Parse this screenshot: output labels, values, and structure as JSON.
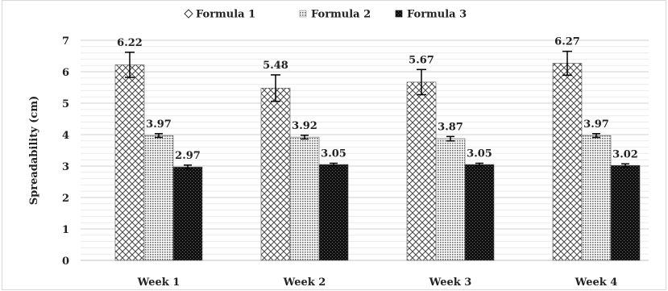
{
  "chart_data": {
    "type": "bar",
    "title": "",
    "xlabel": "",
    "ylabel": "Spreadability (cm)",
    "ylim": [
      0,
      7
    ],
    "yticks": [
      0,
      1,
      2,
      3,
      4,
      5,
      6,
      7
    ],
    "grid": true,
    "legend_position": "top-center",
    "categories": [
      "Week 1",
      "Week 2",
      "Week 3",
      "Week 4"
    ],
    "series": [
      {
        "name": "Formula 1",
        "pattern": "crosshatch",
        "color": "#000000",
        "values": [
          6.22,
          5.48,
          5.67,
          6.27
        ],
        "errors": [
          0.4,
          0.42,
          0.4,
          0.38
        ],
        "labels": [
          "6.22",
          "5.48",
          "5.67",
          "6.27"
        ]
      },
      {
        "name": "Formula 2",
        "pattern": "dots",
        "color": "#000000",
        "values": [
          3.97,
          3.92,
          3.87,
          3.97
        ],
        "errors": [
          0.06,
          0.06,
          0.07,
          0.06
        ],
        "labels": [
          "3.97",
          "3.92",
          "3.87",
          "3.97"
        ]
      },
      {
        "name": "Formula 3",
        "pattern": "dense-check",
        "color": "#000000",
        "values": [
          2.97,
          3.05,
          3.05,
          3.02
        ],
        "errors": [
          0.06,
          0.04,
          0.04,
          0.05
        ],
        "labels": [
          "2.97",
          "3.05",
          "3.05",
          "3.02"
        ]
      }
    ]
  }
}
